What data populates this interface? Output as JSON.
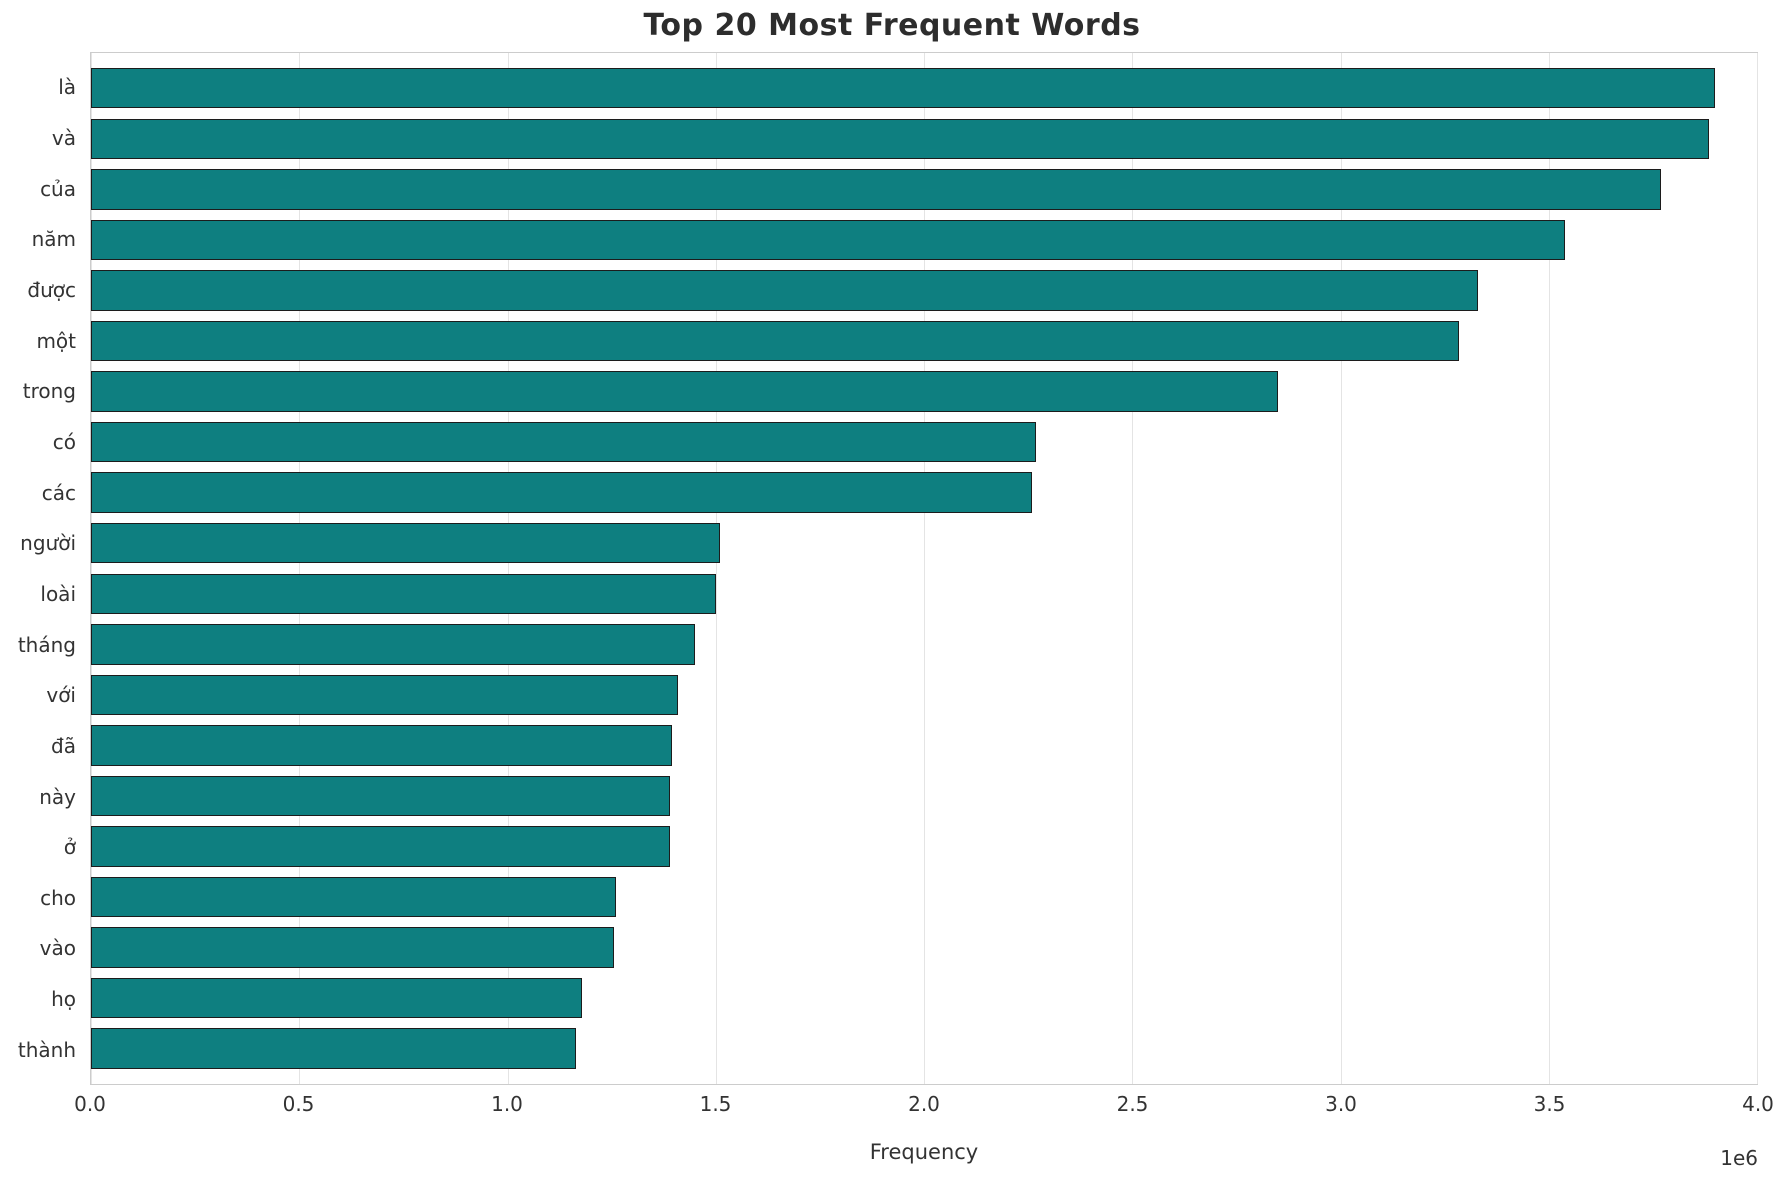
{
  "chart_data": {
    "type": "bar",
    "orientation": "horizontal",
    "title": "Top 20 Most Frequent Words",
    "xlabel": "Frequency",
    "ylabel": "",
    "offset_text": "1e6",
    "xlim": [
      0,
      4000000
    ],
    "x_ticks": [
      "0.0",
      "0.5",
      "1.0",
      "1.5",
      "2.0",
      "2.5",
      "3.0",
      "3.5",
      "4.0"
    ],
    "grid": "vertical",
    "legend": "none",
    "bar_color": "#0e7f80",
    "bar_edge_color": "#1c1c1c",
    "categories": [
      "là",
      "và",
      "của",
      "năm",
      "được",
      "một",
      "trong",
      "có",
      "các",
      "người",
      "loài",
      "tháng",
      "với",
      "đã",
      "này",
      "ở",
      "cho",
      "vào",
      "họ",
      "thành"
    ],
    "values": [
      3900000,
      3885000,
      3770000,
      3540000,
      3330000,
      3285000,
      2850000,
      2270000,
      2260000,
      1510000,
      1500000,
      1450000,
      1410000,
      1395000,
      1390000,
      1390000,
      1260000,
      1255000,
      1180000,
      1165000
    ]
  }
}
